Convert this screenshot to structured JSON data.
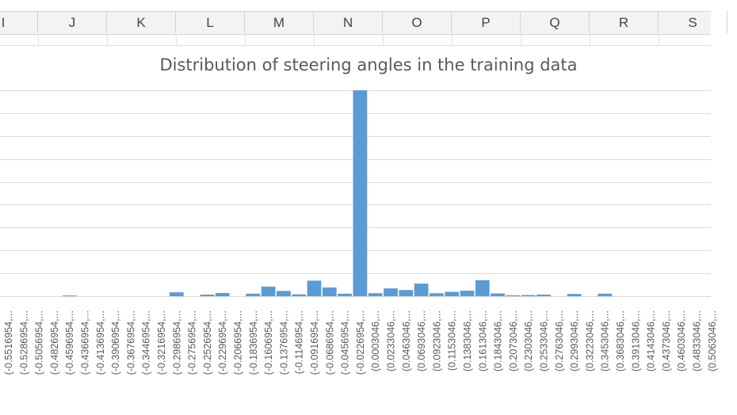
{
  "sheet": {
    "columns": [
      "I",
      "J",
      "K",
      "L",
      "M",
      "N",
      "O",
      "P",
      "Q",
      "R",
      "S"
    ]
  },
  "chart_data": {
    "type": "bar",
    "title": "Distribution of steering angles in the training data",
    "xlabel": "",
    "ylabel": "",
    "grid": true,
    "legend": "none",
    "bar_color": "#5b9bd5",
    "gridline_color": "#d9d9d9",
    "ylim": [
      0,
      9
    ],
    "categories": [
      "(-0.5516954,...",
      "(-0.5286954,...",
      "(-0.5056954,...",
      "(-0.4826954,...",
      "(-0.4596954,...",
      "(-0.4366954,...",
      "(-0.4136954,...",
      "(-0.3906954,...",
      "(-0.3676954,...",
      "(-0.3446954,...",
      "(-0.3216954,...",
      "(-0.2986954,...",
      "(-0.2756954,...",
      "(-0.2526954,...",
      "(-0.2296954,...",
      "(-0.2066954,...",
      "(-0.1836954,...",
      "(-0.1606954,...",
      "(-0.1376954,...",
      "(-0.1146954,...",
      "(-0.0916954,...",
      "(-0.0686954,...",
      "(-0.0456954,...",
      "(-0.0226954,...",
      "(0.0003046,...",
      "(0.0233046,...",
      "(0.0463046,...",
      "(0.0693046,...",
      "(0.0923046,...",
      "(0.1153046,...",
      "(0.1383046,...",
      "(0.1613046,...",
      "(0.1843046,...",
      "(0.2073046,...",
      "(0.2303046,...",
      "(0.2533046,...",
      "(0.2763046,...",
      "(0.2993046,...",
      "(0.3223046,...",
      "(0.3453046,...",
      "(0.3683046,...",
      "(0.3913046,...",
      "(0.4143046,...",
      "(0.4373046,...",
      "(0.4603046,...",
      "(0.4833046,...",
      "(0.5063046,..."
    ],
    "values": [
      0,
      0,
      0,
      0,
      0.03,
      0,
      0,
      0,
      0,
      0,
      0,
      0.17,
      0,
      0.07,
      0.14,
      0,
      0.11,
      0.42,
      0.23,
      0.08,
      0.68,
      0.38,
      0.11,
      9.0,
      0.13,
      0.34,
      0.27,
      0.55,
      0.13,
      0.19,
      0.24,
      0.7,
      0.12,
      0.04,
      0.05,
      0.07,
      0,
      0.1,
      0,
      0.11,
      0,
      0,
      0,
      0,
      0,
      0,
      0
    ]
  }
}
